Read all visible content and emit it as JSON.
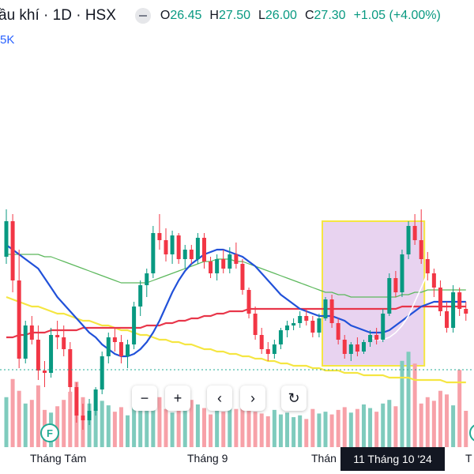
{
  "header": {
    "symbol": "ầu khí · 1D · HSX",
    "ohlc": [
      {
        "k": "O",
        "v": "26.45"
      },
      {
        "k": "H",
        "v": "27.50"
      },
      {
        "k": "L",
        "v": "26.00"
      },
      {
        "k": "C",
        "v": "27.30"
      }
    ],
    "change": "+1.05 (+4.00%)",
    "volume_label": "5K"
  },
  "toolbar": {
    "zoom_out": "−",
    "zoom_in": "+",
    "scroll_left": "‹",
    "scroll_right": "›",
    "reset": "↻"
  },
  "x_axis": {
    "labels": [
      "Tháng Tám",
      "Tháng 9",
      "Thán",
      "T"
    ],
    "crosshair_date": "11 Tháng 10 '24"
  },
  "event_markers": [
    "F",
    ""
  ],
  "colors": {
    "up": "#089981",
    "down": "#f23645",
    "vol_up": "#7fcbbd",
    "vol_down": "#f7a1a8",
    "ma_red": "#e8364a",
    "ma_yellow": "#f5e642",
    "ma_blue": "#2151d9",
    "ma_green": "#5cb85c",
    "selection_fill": "#e2c8ec",
    "selection_border": "#f5e642"
  },
  "chart_data": {
    "type": "candlestick",
    "interval": "1D",
    "ylim": [
      21,
      33
    ],
    "candles": [
      [
        27.5,
        29.5,
        27.2,
        29.0
      ],
      [
        29.0,
        29.3,
        26.0,
        26.5
      ],
      [
        26.5,
        27.8,
        22.8,
        23.2
      ],
      [
        23.2,
        24.8,
        23.0,
        24.6
      ],
      [
        24.6,
        25.0,
        23.8,
        24.0
      ],
      [
        24.0,
        24.6,
        22.3,
        22.7
      ],
      [
        22.7,
        23.1,
        22.0,
        22.6
      ],
      [
        22.6,
        24.5,
        22.4,
        24.2
      ],
      [
        24.2,
        24.8,
        23.6,
        24.1
      ],
      [
        24.1,
        24.6,
        23.3,
        23.6
      ],
      [
        23.6,
        23.9,
        21.8,
        22.0
      ],
      [
        22.0,
        22.2,
        20.5,
        20.8
      ],
      [
        20.8,
        21.3,
        20.2,
        20.6
      ],
      [
        20.6,
        21.5,
        20.4,
        21.0
      ],
      [
        21.0,
        22.0,
        20.8,
        21.9
      ],
      [
        21.9,
        23.5,
        21.7,
        23.3
      ],
      [
        23.3,
        24.3,
        23.0,
        24.1
      ],
      [
        24.1,
        24.5,
        23.5,
        23.9
      ],
      [
        23.9,
        24.2,
        23.0,
        23.3
      ],
      [
        23.3,
        24.0,
        22.8,
        23.8
      ],
      [
        23.8,
        25.6,
        23.6,
        25.4
      ],
      [
        25.4,
        26.5,
        25.0,
        26.3
      ],
      [
        26.3,
        27.0,
        25.8,
        26.8
      ],
      [
        26.8,
        28.8,
        26.6,
        28.5
      ],
      [
        28.5,
        29.3,
        27.8,
        28.2
      ],
      [
        28.2,
        28.7,
        27.3,
        27.6
      ],
      [
        27.6,
        28.6,
        27.2,
        28.4
      ],
      [
        28.4,
        28.5,
        27.2,
        27.4
      ],
      [
        27.4,
        28.0,
        27.0,
        27.8
      ],
      [
        27.8,
        28.0,
        27.2,
        27.4
      ],
      [
        27.4,
        28.5,
        27.2,
        28.3
      ],
      [
        28.3,
        28.5,
        27.0,
        27.3
      ],
      [
        27.3,
        27.5,
        26.6,
        26.8
      ],
      [
        26.8,
        27.6,
        26.5,
        27.4
      ],
      [
        27.4,
        27.8,
        26.8,
        27.0
      ],
      [
        27.0,
        27.9,
        26.8,
        27.6
      ],
      [
        27.6,
        28.1,
        27.0,
        27.2
      ],
      [
        27.2,
        27.4,
        25.9,
        26.1
      ],
      [
        26.1,
        26.2,
        24.9,
        25.1
      ],
      [
        25.1,
        25.4,
        24.0,
        24.2
      ],
      [
        24.2,
        24.5,
        23.4,
        23.6
      ],
      [
        23.6,
        23.9,
        23.1,
        23.4
      ],
      [
        23.4,
        24.0,
        23.2,
        23.8
      ],
      [
        23.8,
        24.5,
        23.6,
        24.4
      ],
      [
        24.4,
        24.8,
        24.1,
        24.6
      ],
      [
        24.6,
        24.9,
        24.4,
        24.7
      ],
      [
        24.7,
        25.2,
        24.5,
        25.0
      ],
      [
        25.0,
        25.3,
        24.6,
        24.8
      ],
      [
        24.8,
        25.0,
        24.1,
        24.3
      ],
      [
        24.3,
        25.1,
        24.1,
        24.9
      ],
      [
        24.9,
        25.8,
        24.8,
        25.7
      ],
      [
        25.7,
        25.9,
        24.5,
        24.7
      ],
      [
        24.7,
        24.9,
        23.8,
        24.0
      ],
      [
        24.0,
        24.2,
        23.2,
        23.4
      ],
      [
        23.4,
        23.9,
        23.1,
        23.8
      ],
      [
        23.8,
        24.1,
        23.3,
        23.5
      ],
      [
        23.5,
        24.0,
        23.4,
        23.9
      ],
      [
        23.9,
        24.4,
        23.7,
        24.2
      ],
      [
        24.2,
        24.5,
        23.8,
        24.0
      ],
      [
        24.0,
        25.3,
        23.9,
        25.1
      ],
      [
        25.1,
        26.8,
        25.0,
        26.6
      ],
      [
        26.6,
        26.9,
        25.8,
        26.0
      ],
      [
        26.0,
        27.8,
        25.8,
        27.6
      ],
      [
        27.6,
        29.0,
        27.4,
        28.8
      ],
      [
        28.8,
        29.3,
        28.0,
        28.2
      ],
      [
        28.2,
        29.5,
        27.2,
        27.4
      ],
      [
        27.4,
        27.7,
        26.5,
        26.8
      ],
      [
        26.8,
        27.0,
        25.8,
        26.2
      ],
      [
        26.2,
        26.5,
        25.0,
        25.2
      ],
      [
        25.2,
        25.6,
        24.3,
        24.5
      ],
      [
        24.5,
        26.3,
        24.3,
        26.0
      ],
      [
        26.0,
        26.2,
        25.0,
        25.3
      ],
      [
        25.3,
        25.6,
        24.8,
        25.1
      ]
    ],
    "volume": [
      0.55,
      0.75,
      0.62,
      0.48,
      0.52,
      0.68,
      0.41,
      0.38,
      0.45,
      0.52,
      0.61,
      0.72,
      0.55,
      0.48,
      0.42,
      0.51,
      0.46,
      0.39,
      0.44,
      0.35,
      0.58,
      0.66,
      0.48,
      0.62,
      0.55,
      0.42,
      0.38,
      0.46,
      0.41,
      0.52,
      0.47,
      0.43,
      0.36,
      0.41,
      0.39,
      0.45,
      0.42,
      0.55,
      0.48,
      0.39,
      0.37,
      0.34,
      0.41,
      0.36,
      0.38,
      0.33,
      0.35,
      0.31,
      0.42,
      0.37,
      0.39,
      0.36,
      0.41,
      0.44,
      0.38,
      0.42,
      0.47,
      0.43,
      0.39,
      0.48,
      0.52,
      0.45,
      0.95,
      1.05,
      0.92,
      0.48,
      0.55,
      0.51,
      0.62,
      0.58,
      0.46,
      0.85,
      0.4
    ],
    "ma_red": [
      24.1,
      24.1,
      24.2,
      24.2,
      24.3,
      24.3,
      24.3,
      24.4,
      24.4,
      24.4,
      24.4,
      24.4,
      24.5,
      24.5,
      24.5,
      24.5,
      24.5,
      24.5,
      24.5,
      24.5,
      24.5,
      24.5,
      24.6,
      24.6,
      24.6,
      24.7,
      24.7,
      24.8,
      24.8,
      24.9,
      24.9,
      25.0,
      25.0,
      25.1,
      25.1,
      25.2,
      25.2,
      25.2,
      25.3,
      25.3,
      25.3,
      25.3,
      25.3,
      25.3,
      25.3,
      25.3,
      25.3,
      25.3,
      25.3,
      25.3,
      25.3,
      25.3,
      25.3,
      25.3,
      25.3,
      25.3,
      25.3,
      25.3,
      25.3,
      25.3,
      25.3,
      25.3,
      25.4,
      25.4,
      25.4,
      25.4,
      25.4,
      25.4,
      25.4,
      25.4,
      25.4,
      25.4,
      25.4
    ],
    "ma_yellow": [
      25.8,
      25.7,
      25.6,
      25.5,
      25.4,
      25.4,
      25.3,
      25.2,
      25.1,
      25.1,
      25.0,
      24.9,
      24.8,
      24.8,
      24.7,
      24.6,
      24.6,
      24.5,
      24.4,
      24.4,
      24.3,
      24.2,
      24.2,
      24.1,
      24.0,
      24.0,
      23.9,
      23.9,
      23.8,
      23.8,
      23.7,
      23.6,
      23.6,
      23.5,
      23.5,
      23.4,
      23.4,
      23.3,
      23.3,
      23.2,
      23.2,
      23.1,
      23.1,
      23.0,
      23.0,
      22.9,
      22.9,
      22.9,
      22.8,
      22.8,
      22.7,
      22.7,
      22.7,
      22.6,
      22.6,
      22.6,
      22.5,
      22.5,
      22.5,
      22.5,
      22.4,
      22.4,
      22.4,
      22.4,
      22.3,
      22.3,
      22.3,
      22.3,
      22.3,
      22.2,
      22.2,
      22.2,
      22.2
    ],
    "ma_blue": [
      28.0,
      27.8,
      27.6,
      27.4,
      27.2,
      27.0,
      26.6,
      26.2,
      25.8,
      25.5,
      25.2,
      24.9,
      24.6,
      24.3,
      24.1,
      23.8,
      23.6,
      23.4,
      23.3,
      23.3,
      23.4,
      23.6,
      23.9,
      24.3,
      24.8,
      25.4,
      26.0,
      26.5,
      26.9,
      27.2,
      27.4,
      27.6,
      27.7,
      27.8,
      27.8,
      27.7,
      27.6,
      27.5,
      27.3,
      27.1,
      26.8,
      26.5,
      26.2,
      25.9,
      25.7,
      25.5,
      25.3,
      25.2,
      25.1,
      25.0,
      25.0,
      25.0,
      24.9,
      24.8,
      24.6,
      24.5,
      24.4,
      24.3,
      24.3,
      24.3,
      24.4,
      24.6,
      24.8,
      25.0,
      25.2,
      25.4,
      25.5,
      25.6,
      25.6,
      25.6,
      25.6,
      25.6,
      25.6
    ],
    "ma_green": [
      27.6,
      27.6,
      27.6,
      27.6,
      27.6,
      27.6,
      27.5,
      27.5,
      27.4,
      27.3,
      27.2,
      27.1,
      27.0,
      26.9,
      26.8,
      26.7,
      26.6,
      26.5,
      26.4,
      26.4,
      26.4,
      26.4,
      26.4,
      26.5,
      26.6,
      26.7,
      26.8,
      26.9,
      27.0,
      27.1,
      27.2,
      27.3,
      27.3,
      27.4,
      27.4,
      27.4,
      27.3,
      27.3,
      27.2,
      27.1,
      27.0,
      26.9,
      26.8,
      26.7,
      26.6,
      26.5,
      26.4,
      26.3,
      26.2,
      26.1,
      26.0,
      26.0,
      25.9,
      25.9,
      25.8,
      25.8,
      25.8,
      25.8,
      25.8,
      25.8,
      25.8,
      25.8,
      25.9,
      25.9,
      26.0,
      26.0,
      26.1,
      26.1,
      26.1,
      26.1,
      26.1,
      26.1,
      26.1
    ],
    "ma_white": [
      null,
      null,
      null,
      null,
      null,
      null,
      null,
      null,
      null,
      null,
      null,
      null,
      null,
      null,
      null,
      null,
      null,
      null,
      null,
      null,
      null,
      null,
      null,
      null,
      null,
      null,
      null,
      null,
      null,
      null,
      null,
      null,
      null,
      null,
      null,
      null,
      null,
      null,
      null,
      null,
      null,
      null,
      null,
      null,
      null,
      null,
      null,
      null,
      null,
      null,
      null,
      null,
      null,
      null,
      null,
      null,
      null,
      24.1,
      24.0,
      24.0,
      24.1,
      24.3,
      24.6,
      25.0,
      25.6,
      26.2,
      26.8,
      null,
      null,
      null,
      null,
      null,
      null
    ],
    "selection": {
      "start_index": 50,
      "end_index": 65,
      "top": 29.0,
      "bottom": 22.9
    }
  }
}
